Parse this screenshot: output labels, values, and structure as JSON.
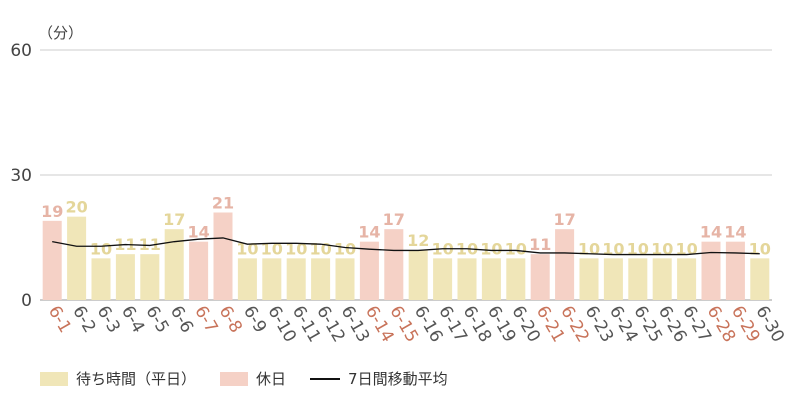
{
  "chart_data": {
    "type": "bar",
    "ylabel": "（分）",
    "ylim": [
      0,
      60
    ],
    "yticks": [
      0,
      30,
      60
    ],
    "grid": true,
    "legend_position": "bottom-left",
    "categories": [
      "6-1",
      "6-2",
      "6-3",
      "6-4",
      "6-5",
      "6-6",
      "6-7",
      "6-8",
      "6-9",
      "6-10",
      "6-11",
      "6-12",
      "6-13",
      "6-14",
      "6-15",
      "6-16",
      "6-17",
      "6-18",
      "6-19",
      "6-20",
      "6-21",
      "6-22",
      "6-23",
      "6-24",
      "6-25",
      "6-26",
      "6-27",
      "6-28",
      "6-29",
      "6-30"
    ],
    "values": [
      19,
      20,
      10,
      11,
      11,
      17,
      14,
      21,
      10,
      10,
      10,
      10,
      10,
      14,
      17,
      12,
      10,
      10,
      10,
      10,
      11,
      17,
      10,
      10,
      10,
      10,
      10,
      14,
      14,
      10
    ],
    "holiday": [
      true,
      false,
      false,
      false,
      false,
      false,
      true,
      true,
      false,
      false,
      false,
      false,
      false,
      true,
      true,
      false,
      false,
      false,
      false,
      false,
      true,
      true,
      false,
      false,
      false,
      false,
      false,
      true,
      true,
      false
    ],
    "moving_average": [
      14,
      12.9,
      12.9,
      13.3,
      13.1,
      14,
      14.6,
      14.9,
      13.4,
      13.6,
      13.6,
      13.4,
      12.6,
      12.2,
      11.9,
      11.9,
      12.3,
      12.3,
      11.9,
      11.9,
      11.3,
      11.3,
      11.1,
      10.9,
      10.9,
      10.9,
      10.9,
      11.4,
      11.3,
      11.1
    ],
    "series": [
      {
        "name": "待ち時間（平日）",
        "color": "#f0e6b8",
        "label_color": "#e4d69a"
      },
      {
        "name": "休日",
        "color": "#f5d1c6",
        "label_color": "#e6b4a6"
      },
      {
        "name": "7日間移動平均",
        "color": "#111111"
      }
    ],
    "weekday_tick_color": "#555555",
    "holiday_tick_color": "#c8735a",
    "grid_color": "#cccccc"
  }
}
